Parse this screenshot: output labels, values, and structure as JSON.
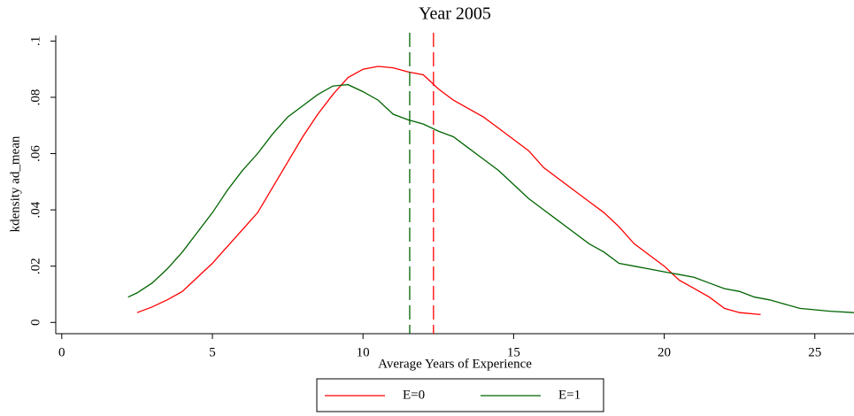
{
  "chart_data": {
    "type": "line",
    "title": "Year 2005",
    "x_label": "Average Years of Experience",
    "y_label": "kdensity ad_mean",
    "xlim": [
      -0.2,
      26.3
    ],
    "xticks": [
      0,
      5,
      10,
      15,
      20,
      25
    ],
    "ylim": [
      -0.004,
      0.102
    ],
    "yticks": [
      0,
      {
        "value": 0.02,
        "label": ".02"
      },
      {
        "value": 0.04,
        "label": ".04"
      },
      {
        "value": 0.06,
        "label": ".06"
      },
      {
        "value": 0.08,
        "label": ".08"
      },
      {
        "value": 0.1,
        "label": ".1"
      }
    ],
    "grid": false,
    "legend": "bottom",
    "series": [
      {
        "name": "E=0",
        "color": "#ff0000",
        "x": [
          2.5,
          3,
          3.5,
          4,
          4.5,
          5,
          5.5,
          6,
          6.5,
          7,
          7.5,
          8,
          8.5,
          9,
          9.5,
          10,
          10.5,
          11,
          11.5,
          12,
          12.5,
          13,
          13.5,
          14,
          14.5,
          15,
          15.5,
          16,
          16.5,
          17,
          17.5,
          18,
          18.5,
          19,
          19.5,
          20,
          20.5,
          21,
          21.5,
          22,
          22.5,
          23.2
        ],
        "values": [
          0.0035,
          0.0055,
          0.008,
          0.011,
          0.016,
          0.021,
          0.027,
          0.033,
          0.039,
          0.048,
          0.057,
          0.066,
          0.074,
          0.081,
          0.087,
          0.09,
          0.091,
          0.0905,
          0.089,
          0.088,
          0.083,
          0.079,
          0.076,
          0.073,
          0.069,
          0.065,
          0.061,
          0.055,
          0.051,
          0.047,
          0.043,
          0.039,
          0.034,
          0.028,
          0.024,
          0.02,
          0.015,
          0.012,
          0.009,
          0.005,
          0.0035,
          0.0028
        ]
      },
      {
        "name": "E=1",
        "color": "#006400",
        "x": [
          2.2,
          2.5,
          3,
          3.5,
          4,
          4.5,
          5,
          5.5,
          6,
          6.5,
          7,
          7.5,
          8,
          8.5,
          9,
          9.5,
          10,
          10.5,
          11,
          11.5,
          12,
          12.5,
          13,
          13.5,
          14,
          14.5,
          15,
          15.5,
          16,
          16.5,
          17,
          17.5,
          18,
          18.5,
          19,
          19.5,
          20,
          20.5,
          21,
          21.5,
          22,
          22.5,
          23,
          23.5,
          24,
          24.5,
          25,
          25.5,
          26.3
        ],
        "values": [
          0.009,
          0.0105,
          0.014,
          0.019,
          0.025,
          0.032,
          0.039,
          0.047,
          0.054,
          0.06,
          0.067,
          0.073,
          0.077,
          0.081,
          0.084,
          0.0845,
          0.082,
          0.079,
          0.074,
          0.072,
          0.0705,
          0.068,
          0.066,
          0.062,
          0.058,
          0.054,
          0.049,
          0.044,
          0.04,
          0.036,
          0.032,
          0.028,
          0.025,
          0.021,
          0.02,
          0.019,
          0.018,
          0.017,
          0.016,
          0.014,
          0.012,
          0.011,
          0.009,
          0.008,
          0.0065,
          0.005,
          0.0045,
          0.004,
          0.0035
        ]
      }
    ],
    "xlines": [
      {
        "value": 11.55,
        "color": "#006400"
      },
      {
        "value": 12.34,
        "color": "#ff0000"
      }
    ]
  }
}
